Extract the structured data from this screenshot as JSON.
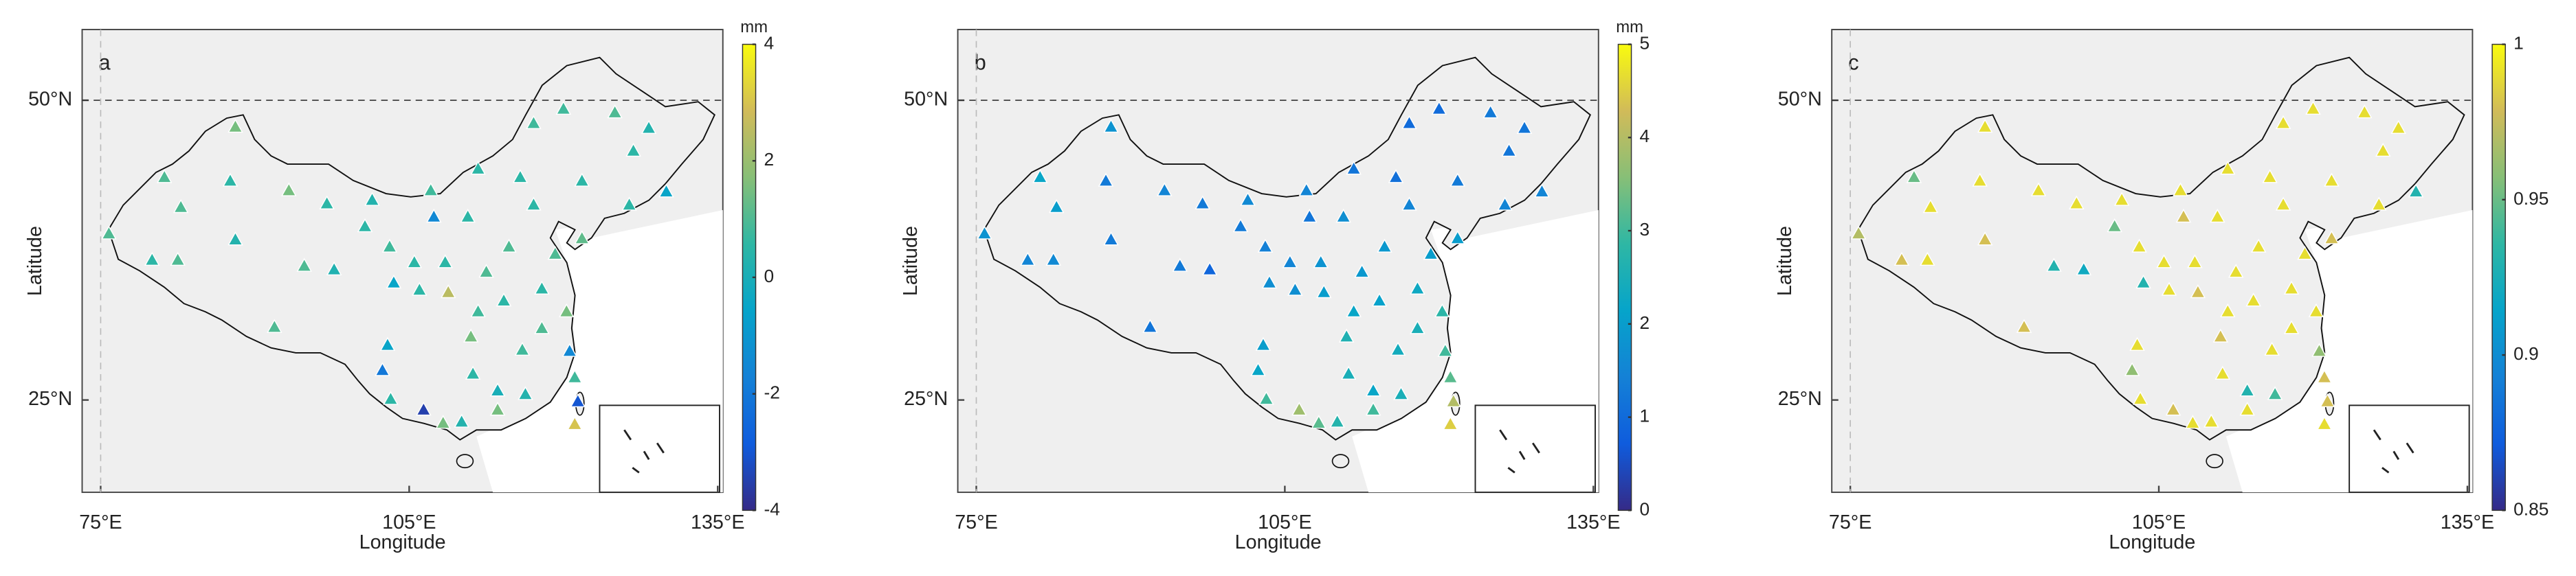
{
  "axes": {
    "xlabel": "Longitude",
    "ylabel": "Latitude",
    "xlim": [
      73.2,
      135.5
    ],
    "ylim": [
      17.3,
      55.9
    ],
    "xticks": [
      {
        "value": 75,
        "label": "75°E"
      },
      {
        "value": 105,
        "label": "105°E"
      },
      {
        "value": 135,
        "label": "135°E"
      }
    ],
    "yticks": [
      {
        "value": 25,
        "label": "25°N"
      },
      {
        "value": 50,
        "label": "50°N"
      }
    ]
  },
  "colormap": [
    "#352a87",
    "#0f5cdd",
    "#1481d6",
    "#06a4ca",
    "#2eb7a4",
    "#87bf77",
    "#d1bb59",
    "#f9fb0e"
  ],
  "stations": {
    "lon": [
      88.1,
      81.2,
      87.6,
      75.8,
      82.8,
      80.0,
      82.5,
      88.1,
      91.9,
      93.3,
      94.8,
      97.0,
      97.7,
      100.7,
      101.4,
      103.1,
      105.5,
      107.4,
      107.1,
      108.5,
      106.0,
      108.8,
      103.5,
      102.4,
      102.9,
      103.2,
      106.4,
      108.3,
      110.7,
      111.7,
      111.7,
      111.0,
      111.2,
      112.5,
      114.7,
      115.8,
      114.2,
      113.6,
      113.6,
      116.0,
      116.3,
      117.9,
      117.9,
      119.2,
      120.3,
      121.1,
      120.6,
      120.0,
      117.1,
      121.8,
      126.4,
      125.0,
      128.3,
      126.8,
      130.0,
      121.4,
      117.1,
      121.8,
      110.1,
      121.1
    ],
    "lat": [
      47.8,
      43.6,
      43.3,
      38.9,
      41.1,
      36.7,
      36.7,
      38.4,
      31.1,
      42.5,
      36.2,
      41.4,
      35.9,
      39.5,
      41.7,
      37.8,
      36.5,
      40.3,
      42.5,
      36.5,
      34.2,
      34.0,
      34.8,
      27.5,
      29.6,
      25.1,
      24.2,
      23.1,
      40.3,
      44.3,
      32.4,
      30.3,
      27.2,
      35.7,
      37.8,
      43.6,
      33.3,
      24.2,
      25.8,
      29.2,
      25.5,
      34.3,
      31.0,
      37.2,
      32.4,
      26.9,
      29.1,
      49.3,
      48.1,
      43.3,
      41.3,
      49.0,
      47.7,
      45.8,
      42.4,
      24.9,
      41.3,
      38.5,
      23.2,
      23.0
    ]
  },
  "panels": [
    {
      "label": "a",
      "unit": "mm",
      "clim": [
        -4,
        4
      ],
      "cticks": [
        -4,
        -2,
        0,
        2,
        4
      ],
      "values": [
        1.5,
        1,
        0.5,
        1,
        1,
        0.5,
        1,
        0.3,
        1,
        1.5,
        1,
        0.5,
        0.2,
        0.5,
        0.3,
        0.8,
        0.5,
        -1.5,
        0.8,
        0.5,
        0.5,
        2.5,
        -0.5,
        -2,
        -0.5,
        0.5,
        -3.5,
        1.5,
        0.5,
        0.5,
        0.8,
        1.5,
        0.5,
        1,
        1,
        0.5,
        0.5,
        1.5,
        0,
        0.8,
        0.3,
        0.5,
        1,
        1,
        1.5,
        0.8,
        -1.5,
        0.8,
        0.8,
        0.5,
        0.5,
        1,
        0.3,
        0.5,
        -0.5,
        -3,
        0.5,
        1.2,
        0.3,
        3
      ]
    },
    {
      "label": "b",
      "unit": "mm",
      "clim": [
        0,
        5
      ],
      "cticks": [
        0,
        1,
        2,
        3,
        4,
        5
      ],
      "values": [
        1.8,
        2.2,
        1.3,
        1.8,
        2.0,
        1.5,
        1.6,
        1.3,
        1.2,
        1.5,
        1.3,
        1.3,
        0.9,
        1.3,
        1.6,
        1.4,
        1.5,
        1.2,
        1.5,
        1.8,
        1.7,
        2.0,
        1.7,
        2.2,
        2.0,
        3.0,
        3.8,
        3.2,
        1.7,
        1.2,
        2.2,
        2.6,
        2.5,
        1.9,
        1.9,
        1.1,
        2.1,
        3.0,
        2.2,
        2.4,
        2.5,
        2.3,
        2.5,
        2.0,
        2.8,
        3.2,
        3.0,
        1.0,
        1.0,
        1.3,
        1.5,
        1.3,
        1.2,
        1.2,
        1.5,
        4.0,
        1.5,
        2.0,
        2.7,
        4.5
      ]
    },
    {
      "label": "c",
      "clim": [
        0.85,
        1
      ],
      "cticks": [
        0.85,
        0.9,
        0.95,
        1
      ],
      "values": [
        0.99,
        0.95,
        0.99,
        0.97,
        0.99,
        0.98,
        0.99,
        0.98,
        0.98,
        0.99,
        0.93,
        0.99,
        0.92,
        0.95,
        0.99,
        0.99,
        0.99,
        0.98,
        0.99,
        0.99,
        0.99,
        0.98,
        0.93,
        0.96,
        0.99,
        0.99,
        0.98,
        0.99,
        0.99,
        0.99,
        0.99,
        0.98,
        0.99,
        0.99,
        0.99,
        0.99,
        0.99,
        0.99,
        0.93,
        0.99,
        0.94,
        0.99,
        0.99,
        0.99,
        0.99,
        0.98,
        0.96,
        0.99,
        0.99,
        0.99,
        0.99,
        0.99,
        0.99,
        0.99,
        0.93,
        0.98,
        0.99,
        0.98,
        0.99,
        0.99
      ]
    }
  ]
}
